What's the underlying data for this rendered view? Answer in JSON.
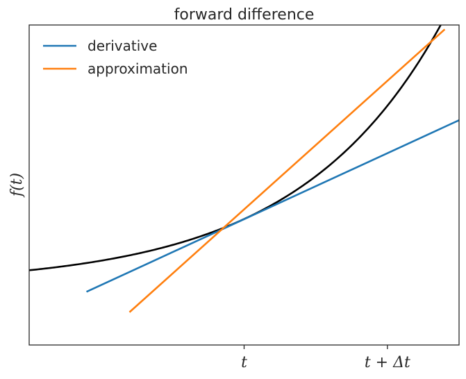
{
  "chart_data": {
    "type": "line",
    "title": "forward difference",
    "xlabel": "",
    "ylabel": "f(t)",
    "x_ticks": [
      {
        "value": 0.5,
        "label": "t"
      },
      {
        "value": 1.5,
        "label": "t + Δt"
      }
    ],
    "y_ticks": [],
    "xlim": [
      -1.0,
      2.0
    ],
    "ylim": [
      -1.5,
      6.5
    ],
    "grid": false,
    "legend_position": "top-left",
    "series": [
      {
        "name": "",
        "role": "function",
        "color": "#000000",
        "expression": "exp(x)",
        "x": [
          -1.0,
          -0.5,
          0.0,
          0.25,
          0.5,
          0.75,
          1.0,
          1.25,
          1.5,
          1.75,
          1.8
        ],
        "y": [
          0.37,
          0.61,
          1.0,
          1.28,
          1.65,
          2.12,
          2.72,
          3.49,
          4.48,
          5.75,
          6.05
        ]
      },
      {
        "name": "derivative",
        "role": "tangent",
        "color": "#1f77b4",
        "x": [
          -0.6,
          2.0
        ],
        "y": [
          -0.17,
          4.12
        ]
      },
      {
        "name": "approximation",
        "role": "secant",
        "color": "#ff7f0e",
        "x": [
          -0.3,
          1.9
        ],
        "y": [
          -0.68,
          6.39
        ]
      }
    ]
  }
}
